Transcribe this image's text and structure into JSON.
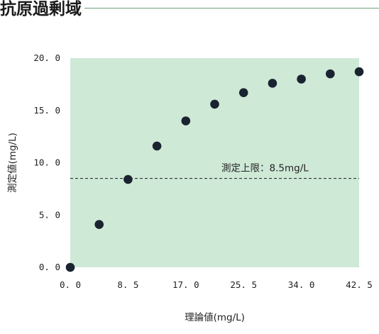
{
  "heading": "抗原過剰域",
  "colors": {
    "plot_background": "#cfe9d7",
    "rule": "#6fa37a",
    "marker": "#1a2330",
    "reference_line": "#1a1a1a"
  },
  "chart_data": {
    "type": "scatter",
    "title": "",
    "xlabel": "理論値(mg/L)",
    "ylabel": "測定値(mg/L)",
    "xlim": [
      0,
      42.5
    ],
    "ylim": [
      0,
      20
    ],
    "x_ticks": [
      "0.0",
      "8.5",
      "17.0",
      "25.5",
      "34.0",
      "42.5"
    ],
    "x_tick_values": [
      0,
      8.5,
      17.0,
      25.5,
      34.0,
      42.5
    ],
    "y_ticks": [
      "0.0",
      "5.0",
      "10.0",
      "15.0",
      "20.0"
    ],
    "y_tick_values": [
      0,
      5,
      10,
      15,
      20
    ],
    "grid": false,
    "points": [
      {
        "x": 0,
        "y": 0
      },
      {
        "x": 4.25,
        "y": 4.1
      },
      {
        "x": 8.5,
        "y": 8.4
      },
      {
        "x": 12.75,
        "y": 11.6
      },
      {
        "x": 17.0,
        "y": 14.0
      },
      {
        "x": 21.25,
        "y": 15.6
      },
      {
        "x": 25.5,
        "y": 16.7
      },
      {
        "x": 29.75,
        "y": 17.6
      },
      {
        "x": 34.0,
        "y": 18.0
      },
      {
        "x": 38.25,
        "y": 18.5
      },
      {
        "x": 42.5,
        "y": 18.7
      }
    ],
    "reference_line": {
      "y": 8.5,
      "label": "測定上限：8.5mg/L",
      "style": "dashed"
    }
  }
}
